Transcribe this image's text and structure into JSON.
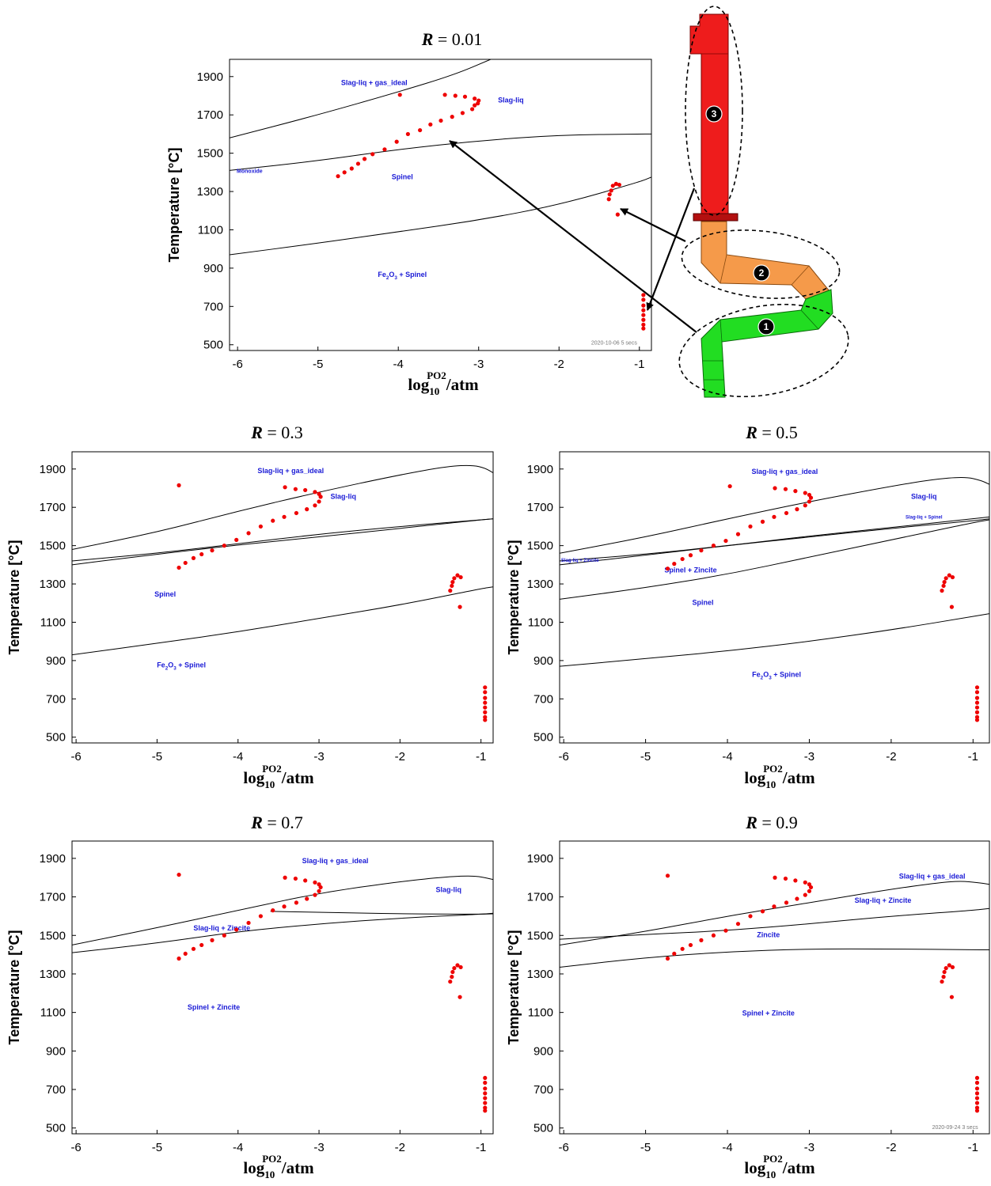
{
  "panels": [
    {
      "title_r": "R",
      "title_val": "= 0.01",
      "ylabel": "Temperature [°C]",
      "xlabel_main": "log",
      "xlabel_sub": "10",
      "xlabel_sup": "PO2",
      "xlabel_unit": "/atm",
      "xticks": [
        "-6",
        "-5",
        "-4",
        "-3",
        "-2",
        "-1"
      ],
      "yticks": [
        "1900",
        "1700",
        "1500",
        "1300",
        "1100",
        "900",
        "700",
        "500"
      ],
      "regions": [
        "Slag-liq + gas_ideal",
        "Slag-liq",
        "Monoxide",
        "Spinel",
        "Fe2O3 + Spinel"
      ],
      "watermark": "2020-10-06  5 secs"
    },
    {
      "title_r": "R",
      "title_val": "= 0.3",
      "ylabel": "Temperature [°C]",
      "xlabel_main": "log",
      "xlabel_sub": "10",
      "xlabel_sup": "PO2",
      "xlabel_unit": "/atm",
      "xticks": [
        "-6",
        "-5",
        "-4",
        "-3",
        "-2",
        "-1"
      ],
      "yticks": [
        "1900",
        "1700",
        "1500",
        "1300",
        "1100",
        "900",
        "700",
        "500"
      ],
      "regions": [
        "Slag-liq + gas_ideal",
        "Slag-liq",
        "Spinel",
        "Fe2O3 + Spinel"
      ]
    },
    {
      "title_r": "R",
      "title_val": "= 0.5",
      "ylabel": "Temperature [°C]",
      "xlabel_main": "log",
      "xlabel_sub": "10",
      "xlabel_sup": "PO2",
      "xlabel_unit": "/atm",
      "xticks": [
        "-6",
        "-5",
        "-4",
        "-3",
        "-2",
        "-1"
      ],
      "yticks": [
        "1900",
        "1700",
        "1500",
        "1300",
        "1100",
        "900",
        "700",
        "500"
      ],
      "regions": [
        "Slag-liq + gas_ideal",
        "Slag-liq",
        "Slag-liq + Spinel",
        "Slag-liq + Zincite",
        "Spinel + Zincite",
        "Spinel",
        "Fe2O3 + Spinel"
      ]
    },
    {
      "title_r": "R",
      "title_val": "= 0.7",
      "ylabel": "Temperature [°C]",
      "xlabel_main": "log",
      "xlabel_sub": "10",
      "xlabel_sup": "PO2",
      "xlabel_unit": "/atm",
      "xticks": [
        "-6",
        "-5",
        "-4",
        "-3",
        "-2",
        "-1"
      ],
      "yticks": [
        "1900",
        "1700",
        "1500",
        "1300",
        "1100",
        "900",
        "700",
        "500"
      ],
      "regions": [
        "Slag-liq + gas_ideal",
        "Slag-liq",
        "Slag-liq + Zincite",
        "Spinel + Zincite"
      ]
    },
    {
      "title_r": "R",
      "title_val": "= 0.9",
      "ylabel": "Temperature [°C]",
      "xlabel_main": "log",
      "xlabel_sub": "10",
      "xlabel_sup": "PO2",
      "xlabel_unit": "/atm",
      "xticks": [
        "-6",
        "-5",
        "-4",
        "-3",
        "-2",
        "-1"
      ],
      "yticks": [
        "1900",
        "1700",
        "1500",
        "1300",
        "1100",
        "900",
        "700",
        "500"
      ],
      "regions": [
        "Slag-liq + gas_ideal",
        "Slag-liq + Zincite",
        "Zincite",
        "Spinel + Zincite"
      ],
      "watermark": "2020-09-24  3 secs"
    }
  ],
  "furnace": {
    "zone_labels": [
      "1",
      "2",
      "3"
    ],
    "colors": {
      "zone1": "#22dd22",
      "zone2": "#f59a4a",
      "zone3": "#ee1c1c"
    }
  },
  "chart_data": [
    {
      "type": "scatter",
      "title": "R = 0.01",
      "xlabel": "log10 PO2 /atm",
      "ylabel": "Temperature [°C]",
      "xlim": [
        -6.1,
        -0.85
      ],
      "ylim": [
        470,
        1990
      ],
      "series": [
        {
          "x": [
            -4.75,
            -4.67,
            -4.58,
            -4.5,
            -4.42,
            -4.32,
            -4.17,
            -4.02,
            -3.88,
            -3.73,
            -3.6,
            -3.47,
            -3.33,
            -3.2,
            -3.08,
            -3.05,
            -3.01,
            -3.0,
            -3.05,
            -3.17,
            -3.29,
            -3.42,
            -3.98,
            -1.38,
            -1.37,
            -1.35,
            -1.33,
            -1.29,
            -1.25,
            -1.27,
            -0.95,
            -0.95,
            -0.95,
            -0.95,
            -0.95,
            -0.95,
            -0.95,
            -0.95
          ],
          "y": [
            1380,
            1400,
            1420,
            1445,
            1470,
            1495,
            1520,
            1560,
            1600,
            1620,
            1650,
            1670,
            1690,
            1710,
            1730,
            1750,
            1760,
            1775,
            1785,
            1795,
            1800,
            1805,
            1805,
            1260,
            1285,
            1305,
            1330,
            1340,
            1335,
            1180,
            760,
            735,
            705,
            680,
            655,
            630,
            605,
            585
          ]
        }
      ],
      "annotations": [
        "Slag-liq + gas_ideal",
        "Slag-liq",
        "Monoxide",
        "Spinel",
        "Fe2O3 + Spinel"
      ]
    },
    {
      "type": "scatter",
      "title": "R = 0.3",
      "xlabel": "log10 PO2 /atm",
      "ylabel": "Temperature [°C]",
      "xlim": [
        -6.05,
        -0.85
      ],
      "ylim": [
        470,
        1990
      ],
      "series": [
        {
          "x": [
            -4.73,
            -4.65,
            -4.55,
            -4.45,
            -4.32,
            -4.17,
            -4.02,
            -3.87,
            -3.72,
            -3.57,
            -3.43,
            -3.28,
            -3.15,
            -3.05,
            -3.0,
            -2.98,
            -3.0,
            -3.05,
            -3.17,
            -3.29,
            -3.42,
            -4.73,
            -1.38,
            -1.36,
            -1.35,
            -1.33,
            -1.29,
            -1.25,
            -1.26,
            -0.95,
            -0.95,
            -0.95,
            -0.95,
            -0.95,
            -0.95,
            -0.95,
            -0.95
          ],
          "y": [
            1385,
            1410,
            1435,
            1455,
            1475,
            1500,
            1530,
            1565,
            1600,
            1630,
            1650,
            1670,
            1690,
            1710,
            1730,
            1755,
            1770,
            1780,
            1790,
            1795,
            1805,
            1815,
            1265,
            1290,
            1310,
            1330,
            1345,
            1335,
            1180,
            760,
            735,
            705,
            680,
            655,
            630,
            605,
            590
          ]
        }
      ],
      "annotations": [
        "Slag-liq + gas_ideal",
        "Slag-liq",
        "Spinel",
        "Fe2O3 + Spinel"
      ]
    },
    {
      "type": "scatter",
      "title": "R = 0.5",
      "xlabel": "log10 PO2 /atm",
      "ylabel": "Temperature [°C]",
      "xlim": [
        -6.05,
        -0.8
      ],
      "ylim": [
        470,
        1990
      ],
      "series": [
        {
          "x": [
            -4.73,
            -4.65,
            -4.55,
            -4.45,
            -4.32,
            -4.17,
            -4.02,
            -3.87,
            -3.72,
            -3.57,
            -3.43,
            -3.28,
            -3.15,
            -3.05,
            -3.0,
            -2.98,
            -3.0,
            -3.05,
            -3.17,
            -3.29,
            -3.42,
            -3.97,
            -1.38,
            -1.36,
            -1.35,
            -1.33,
            -1.29,
            -1.25,
            -1.26,
            -0.95,
            -0.95,
            -0.95,
            -0.95,
            -0.95,
            -0.95,
            -0.95,
            -0.95
          ],
          "y": [
            1380,
            1405,
            1430,
            1450,
            1475,
            1500,
            1525,
            1560,
            1600,
            1625,
            1650,
            1670,
            1690,
            1710,
            1730,
            1750,
            1765,
            1775,
            1785,
            1795,
            1800,
            1810,
            1265,
            1290,
            1310,
            1330,
            1345,
            1335,
            1180,
            760,
            735,
            705,
            680,
            655,
            630,
            605,
            590
          ]
        }
      ],
      "annotations": [
        "Slag-liq + gas_ideal",
        "Slag-liq",
        "Slag-liq + Spinel",
        "Slag-liq + Zincite",
        "Spinel + Zincite",
        "Spinel",
        "Fe2O3 + Spinel"
      ]
    },
    {
      "type": "scatter",
      "title": "R = 0.7",
      "xlabel": "log10 PO2 /atm",
      "ylabel": "Temperature [°C]",
      "xlim": [
        -6.05,
        -0.85
      ],
      "ylim": [
        470,
        1990
      ],
      "series": [
        {
          "x": [
            -4.73,
            -4.65,
            -4.55,
            -4.45,
            -4.32,
            -4.17,
            -4.02,
            -3.87,
            -3.72,
            -3.57,
            -3.43,
            -3.28,
            -3.15,
            -3.05,
            -3.0,
            -2.98,
            -3.0,
            -3.05,
            -3.17,
            -3.29,
            -3.42,
            -4.73,
            -1.38,
            -1.36,
            -1.35,
            -1.33,
            -1.29,
            -1.25,
            -1.26,
            -0.95,
            -0.95,
            -0.95,
            -0.95,
            -0.95,
            -0.95,
            -0.95,
            -0.95
          ],
          "y": [
            1380,
            1405,
            1430,
            1450,
            1475,
            1500,
            1530,
            1565,
            1600,
            1630,
            1650,
            1670,
            1690,
            1710,
            1730,
            1750,
            1765,
            1775,
            1785,
            1795,
            1800,
            1815,
            1260,
            1285,
            1310,
            1330,
            1345,
            1335,
            1180,
            760,
            735,
            705,
            680,
            655,
            630,
            605,
            590
          ]
        }
      ],
      "annotations": [
        "Slag-liq + gas_ideal",
        "Slag-liq",
        "Slag-liq + Zincite",
        "Spinel + Zincite"
      ]
    },
    {
      "type": "scatter",
      "title": "R = 0.9",
      "xlabel": "log10 PO2 /atm",
      "ylabel": "Temperature [°C]",
      "xlim": [
        -6.05,
        -0.8
      ],
      "ylim": [
        470,
        1990
      ],
      "series": [
        {
          "x": [
            -4.73,
            -4.65,
            -4.55,
            -4.45,
            -4.32,
            -4.17,
            -4.02,
            -3.87,
            -3.72,
            -3.57,
            -3.43,
            -3.28,
            -3.15,
            -3.05,
            -3.0,
            -2.98,
            -3.0,
            -3.05,
            -3.17,
            -3.29,
            -3.42,
            -4.73,
            -1.38,
            -1.36,
            -1.35,
            -1.33,
            -1.29,
            -1.25,
            -1.26,
            -0.95,
            -0.95,
            -0.95,
            -0.95,
            -0.95,
            -0.95,
            -0.95,
            -0.95
          ],
          "y": [
            1380,
            1405,
            1430,
            1450,
            1475,
            1500,
            1525,
            1560,
            1600,
            1625,
            1650,
            1670,
            1690,
            1710,
            1730,
            1750,
            1765,
            1775,
            1785,
            1795,
            1800,
            1810,
            1260,
            1285,
            1310,
            1330,
            1345,
            1335,
            1180,
            760,
            735,
            705,
            680,
            655,
            630,
            605,
            590
          ]
        }
      ],
      "annotations": [
        "Slag-liq + gas_ideal",
        "Slag-liq + Zincite",
        "Zincite",
        "Spinel + Zincite"
      ]
    }
  ]
}
